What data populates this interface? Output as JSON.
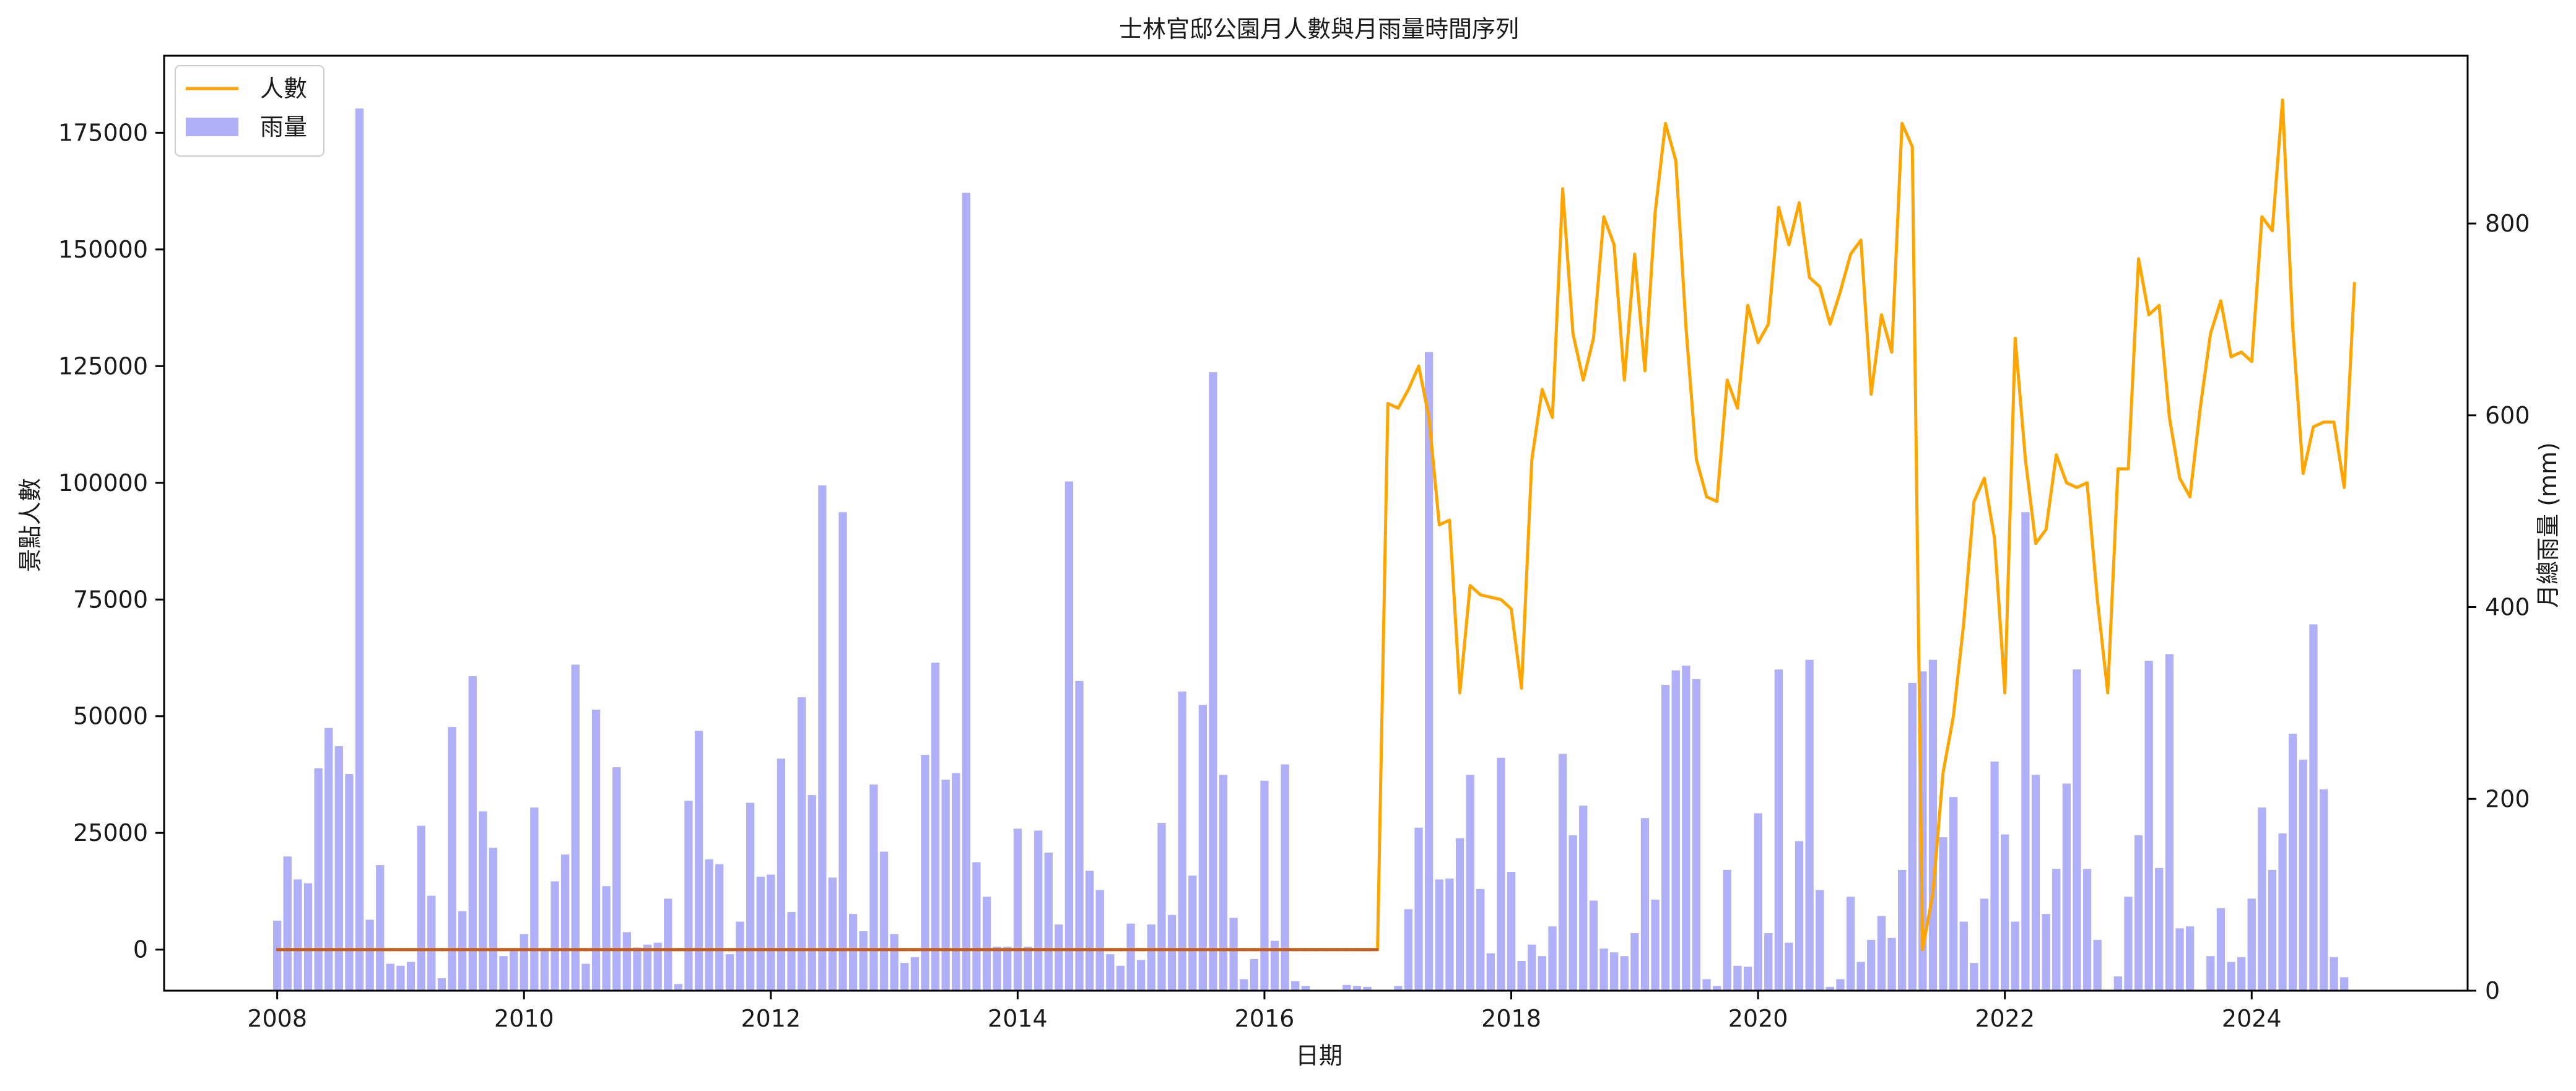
{
  "chart_data": {
    "type": "bar+line",
    "title": "士林官邸公園月人數與月雨量時間序列",
    "xlabel": "日期",
    "ylabel_left": "景點人數",
    "ylabel_right": "月總雨量 (mm)",
    "xlim": [
      "2007-02",
      "2025-10"
    ],
    "ylim_left": [
      -8800,
      191500
    ],
    "ylim_right": [
      0,
      975
    ],
    "x_ticks": [
      "2008",
      "2010",
      "2012",
      "2014",
      "2016",
      "2018",
      "2020",
      "2022",
      "2024"
    ],
    "y_left_ticks": [
      0,
      25000,
      50000,
      75000,
      100000,
      125000,
      150000,
      175000
    ],
    "y_right_ticks": [
      0,
      200,
      400,
      600,
      800
    ],
    "legend": {
      "placement": "top-left",
      "entries": [
        "人數",
        "雨量"
      ]
    },
    "colors": {
      "line": "#ffa500",
      "bar": "#b0b0f8",
      "overlap": "#c06028"
    },
    "grid": false,
    "start_month": "2008-01",
    "series": [
      {
        "name": "人數",
        "kind": "line",
        "axis": "left",
        "values": [
          0,
          0,
          0,
          0,
          0,
          0,
          0,
          0,
          0,
          0,
          0,
          0,
          0,
          0,
          0,
          0,
          0,
          0,
          0,
          0,
          0,
          0,
          0,
          0,
          0,
          0,
          0,
          0,
          0,
          0,
          0,
          0,
          0,
          0,
          0,
          0,
          0,
          0,
          0,
          0,
          0,
          0,
          0,
          0,
          0,
          0,
          0,
          0,
          0,
          0,
          0,
          0,
          0,
          0,
          0,
          0,
          0,
          0,
          0,
          0,
          0,
          0,
          0,
          0,
          0,
          0,
          0,
          0,
          0,
          0,
          0,
          0,
          0,
          0,
          0,
          0,
          0,
          0,
          0,
          0,
          0,
          0,
          0,
          0,
          0,
          0,
          0,
          0,
          0,
          0,
          0,
          0,
          0,
          0,
          0,
          0,
          0,
          0,
          0,
          0,
          0,
          0,
          0,
          0,
          0,
          0,
          0,
          0,
          117000,
          116000,
          120000,
          125000,
          114000,
          91000,
          92000,
          55000,
          78000,
          76000,
          75500,
          75000,
          73000,
          56000,
          105000,
          120000,
          114000,
          163000,
          132000,
          122000,
          131000,
          157000,
          151000,
          122000,
          149000,
          124000,
          158000,
          177000,
          169000,
          133000,
          105000,
          97000,
          96000,
          122000,
          116000,
          138000,
          130000,
          134000,
          159000,
          151000,
          160000,
          144000,
          142000,
          134000,
          141000,
          149000,
          152000,
          119000,
          136000,
          128000,
          177000,
          172000,
          0,
          12000,
          38000,
          50000,
          70000,
          96000,
          101000,
          88000,
          55000,
          131000,
          105000,
          87000,
          90000,
          106000,
          100000,
          99000,
          100000,
          75000,
          55000,
          103000,
          103000,
          148000,
          136000,
          138000,
          114000,
          101000,
          97000,
          116000,
          132000,
          139000,
          127000,
          128000,
          126000,
          157000,
          154000,
          182000,
          133000,
          102000,
          112000,
          113000,
          113000,
          99000,
          143000
        ]
      },
      {
        "name": "雨量",
        "kind": "bar",
        "axis": "right",
        "values": [
          73,
          140,
          116,
          112,
          232,
          274,
          255,
          226,
          920,
          74,
          131,
          28,
          26,
          30,
          172,
          99,
          13,
          275,
          83,
          328,
          187,
          149,
          36,
          41,
          59,
          191,
          44,
          114,
          142,
          340,
          28,
          293,
          109,
          233,
          61,
          45,
          48,
          50,
          96,
          7,
          198,
          271,
          137,
          132,
          38,
          72,
          196,
          119,
          121,
          242,
          82,
          306,
          204,
          527,
          118,
          499,
          80,
          62,
          215,
          145,
          59,
          29,
          35,
          246,
          342,
          220,
          227,
          832,
          134,
          98,
          46,
          46,
          169,
          46,
          167,
          144,
          69,
          531,
          323,
          125,
          105,
          38,
          26,
          70,
          32,
          69,
          175,
          79,
          312,
          120,
          298,
          645,
          225,
          76,
          12,
          33,
          219,
          52,
          236,
          10,
          5,
          0,
          0,
          0,
          6,
          5,
          4,
          0,
          0,
          5,
          85,
          170,
          666,
          116,
          117,
          159,
          225,
          106,
          39,
          243,
          124,
          31,
          48,
          36,
          67,
          247,
          162,
          193,
          94,
          44,
          40,
          36,
          60,
          180,
          95,
          319,
          334,
          339,
          325,
          12,
          5,
          126,
          26,
          25,
          185,
          60,
          335,
          50,
          156,
          345,
          105,
          4,
          12,
          98,
          30,
          53,
          78,
          55,
          126,
          321,
          333,
          345,
          160,
          202,
          72,
          29,
          96,
          239,
          163,
          72,
          499,
          225,
          80,
          127,
          216,
          335,
          127,
          53,
          0,
          15,
          98,
          162,
          344,
          128,
          351,
          65,
          67,
          0,
          36,
          86,
          30,
          35,
          96,
          191,
          126,
          164,
          268,
          241,
          382,
          210,
          35,
          14
        ]
      }
    ]
  }
}
